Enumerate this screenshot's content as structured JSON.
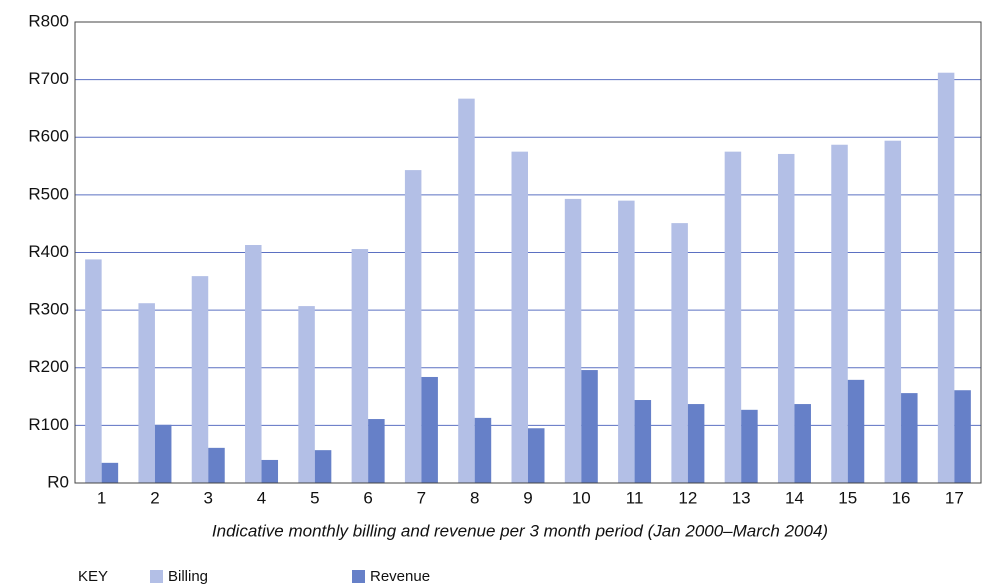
{
  "chart_data": {
    "type": "bar",
    "x_label": "Indicative monthly billing and revenue per 3 month period (Jan 2000–March 2004)",
    "legend_title": "KEY",
    "categories": [
      "1",
      "2",
      "3",
      "4",
      "5",
      "6",
      "7",
      "8",
      "9",
      "10",
      "11",
      "12",
      "13",
      "14",
      "15",
      "16",
      "17"
    ],
    "series": [
      {
        "name": "Billing",
        "color": "#b3bfe6",
        "values": [
          388,
          312,
          359,
          413,
          307,
          406,
          543,
          667,
          575,
          493,
          490,
          451,
          575,
          571,
          587,
          594,
          712
        ]
      },
      {
        "name": "Revenue",
        "color": "#6680c8",
        "values": [
          35,
          101,
          61,
          40,
          57,
          111,
          184,
          113,
          95,
          196,
          144,
          137,
          127,
          137,
          179,
          156,
          161
        ]
      }
    ],
    "ylim": [
      0,
      800
    ],
    "yticks": [
      {
        "value": 0,
        "label": "R0"
      },
      {
        "value": 100,
        "label": "R100"
      },
      {
        "value": 200,
        "label": "R200"
      },
      {
        "value": 300,
        "label": "R300"
      },
      {
        "value": 400,
        "label": "R400"
      },
      {
        "value": 500,
        "label": "R500"
      },
      {
        "value": 600,
        "label": "R600"
      },
      {
        "value": 700,
        "label": "R700"
      },
      {
        "value": 800,
        "label": "R800"
      }
    ],
    "grid": true,
    "grid_color": "#5b70c2"
  }
}
